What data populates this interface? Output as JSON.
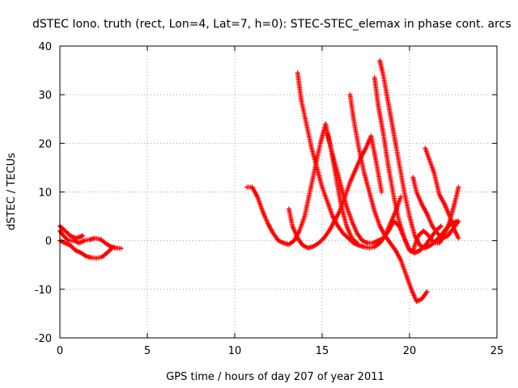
{
  "chart_data": {
    "type": "scatter",
    "title": "dSTEC Iono. truth (rect, Lon=4, Lat=7, h=0): STEC-STEC_elemax in phase cont. arcs",
    "xlabel": "GPS time / hours of day 207 of year 2011",
    "ylabel": "dSTEC  / TECUs",
    "xlim": [
      0,
      25
    ],
    "ylim": [
      -20,
      40
    ],
    "xticks": [
      0,
      5,
      10,
      15,
      20,
      25
    ],
    "yticks": [
      -20,
      -10,
      0,
      10,
      20,
      30,
      40
    ],
    "grid": true,
    "marker": "+",
    "color": "#ff0000",
    "series": [
      {
        "x": [
          0.0,
          0.3,
          0.6,
          0.9,
          1.2,
          1.3
        ],
        "y": [
          3.0,
          2.0,
          1.0,
          0.5,
          0.8,
          1.0
        ]
      },
      {
        "x": [
          0.0,
          0.3,
          0.6,
          0.9,
          1.2,
          1.5,
          1.8,
          2.1,
          2.4,
          2.7,
          3.0
        ],
        "y": [
          0.0,
          -0.5,
          -1.0,
          -2.0,
          -2.5,
          -3.2,
          -3.5,
          -3.6,
          -3.4,
          -2.5,
          -1.5
        ]
      },
      {
        "x": [
          0.0,
          0.2,
          0.5,
          0.8,
          1.1,
          1.4,
          1.7,
          2.0,
          2.3,
          2.6,
          2.9,
          3.2,
          3.5
        ],
        "y": [
          2.0,
          1.0,
          0.0,
          0.0,
          -0.5,
          0.0,
          0.2,
          0.5,
          0.3,
          -0.5,
          -1.2,
          -1.5,
          -1.6
        ]
      },
      {
        "x": [
          10.7,
          11.0,
          11.3,
          11.6,
          11.9,
          12.2,
          12.5,
          12.8,
          13.1,
          13.4,
          13.7,
          14.0,
          14.3,
          14.6,
          14.9,
          15.2,
          15.5,
          15.8,
          16.1,
          16.4,
          16.7,
          17.0
        ],
        "y": [
          11.0,
          11.0,
          9.0,
          6.0,
          3.5,
          1.5,
          0.0,
          -0.5,
          -0.8,
          0.0,
          2.0,
          5.0,
          10.0,
          15.0,
          20.0,
          24.0,
          19.0,
          13.0,
          7.0,
          3.0,
          0.5,
          -0.5
        ]
      },
      {
        "x": [
          13.1,
          13.3,
          13.6,
          13.9,
          14.2,
          14.5,
          14.8,
          15.1,
          15.4,
          15.7,
          16.0,
          16.3,
          16.6,
          16.9,
          17.2,
          17.5,
          17.8,
          18.1,
          18.4
        ],
        "y": [
          6.5,
          3.0,
          0.5,
          -1.0,
          -1.5,
          -1.2,
          -0.5,
          0.5,
          2.0,
          4.0,
          6.0,
          9.0,
          12.0,
          14.5,
          17.0,
          19.0,
          21.5,
          16.0,
          10.0
        ]
      },
      {
        "x": [
          13.6,
          13.8,
          14.1,
          14.4,
          14.7,
          15.0,
          15.3,
          15.6,
          15.9,
          16.2,
          16.5,
          16.8,
          17.1,
          17.4,
          17.7,
          18.0,
          18.3,
          18.6,
          18.9,
          19.2,
          19.5
        ],
        "y": [
          34.5,
          29.0,
          24.0,
          19.0,
          15.0,
          11.0,
          8.0,
          5.0,
          3.0,
          1.5,
          0.5,
          -0.5,
          -1.0,
          -1.3,
          -1.5,
          -1.3,
          -0.5,
          1.0,
          3.5,
          6.0,
          9.0
        ]
      },
      {
        "x": [
          15.3,
          15.5,
          15.8,
          16.1,
          16.4,
          16.7,
          17.0,
          17.3,
          17.6,
          17.9,
          18.2,
          18.5,
          18.8,
          19.1,
          19.4,
          19.7,
          20.0,
          20.3,
          20.6,
          20.9
        ],
        "y": [
          22.0,
          19.0,
          15.0,
          11.0,
          7.0,
          4.0,
          1.5,
          0.0,
          -0.5,
          -0.5,
          0.0,
          0.5,
          2.0,
          4.0,
          3.0,
          0.5,
          -2.0,
          -2.5,
          -2.0,
          -1.0
        ]
      },
      {
        "x": [
          16.6,
          16.8,
          17.1,
          17.4,
          17.7,
          18.0,
          18.3,
          18.6,
          18.9,
          19.2,
          19.5,
          19.8,
          20.1,
          20.4,
          20.7,
          21.0
        ],
        "y": [
          30.0,
          25.0,
          19.0,
          14.0,
          10.0,
          6.0,
          3.0,
          1.0,
          -0.5,
          -2.0,
          -4.0,
          -7.0,
          -10.0,
          -12.5,
          -12.0,
          -10.5
        ]
      },
      {
        "x": [
          18.0,
          18.2,
          18.5,
          18.8,
          19.1,
          19.4,
          19.7,
          20.0,
          20.3,
          20.6,
          20.9,
          21.2,
          21.5,
          21.8
        ],
        "y": [
          33.5,
          28.0,
          22.0,
          15.0,
          9.0,
          4.0,
          0.5,
          -2.0,
          -2.5,
          -2.0,
          -1.0,
          0.5,
          2.0,
          3.0
        ]
      },
      {
        "x": [
          18.3,
          18.5,
          18.8,
          19.1,
          19.4,
          19.7,
          20.0,
          20.3,
          20.6,
          20.9,
          21.2,
          21.5,
          21.8,
          22.1,
          22.4,
          22.7
        ],
        "y": [
          37.0,
          34.0,
          28.0,
          22.0,
          16.0,
          10.0,
          5.0,
          1.0,
          -1.0,
          -1.5,
          -1.0,
          0.0,
          1.0,
          2.5,
          3.5,
          4.0
        ]
      },
      {
        "x": [
          20.2,
          20.4,
          20.7,
          21.0,
          21.3,
          21.6,
          21.9,
          22.2,
          22.5,
          22.8
        ],
        "y": [
          13.0,
          10.0,
          7.5,
          5.5,
          3.0,
          1.5,
          0.5,
          1.0,
          2.5,
          4.0
        ]
      },
      {
        "x": [
          20.9,
          21.1,
          21.4,
          21.7,
          22.0,
          22.3,
          22.6,
          22.8
        ],
        "y": [
          19.0,
          17.0,
          14.0,
          9.5,
          7.5,
          5.0,
          2.0,
          0.5
        ]
      },
      {
        "x": [
          20.2,
          20.5,
          20.8,
          21.1,
          21.4,
          21.7,
          22.0,
          22.3,
          22.6,
          22.8
        ],
        "y": [
          -2.0,
          1.0,
          2.0,
          1.0,
          -0.5,
          -0.5,
          1.0,
          4.0,
          8.0,
          11.0
        ]
      }
    ]
  }
}
